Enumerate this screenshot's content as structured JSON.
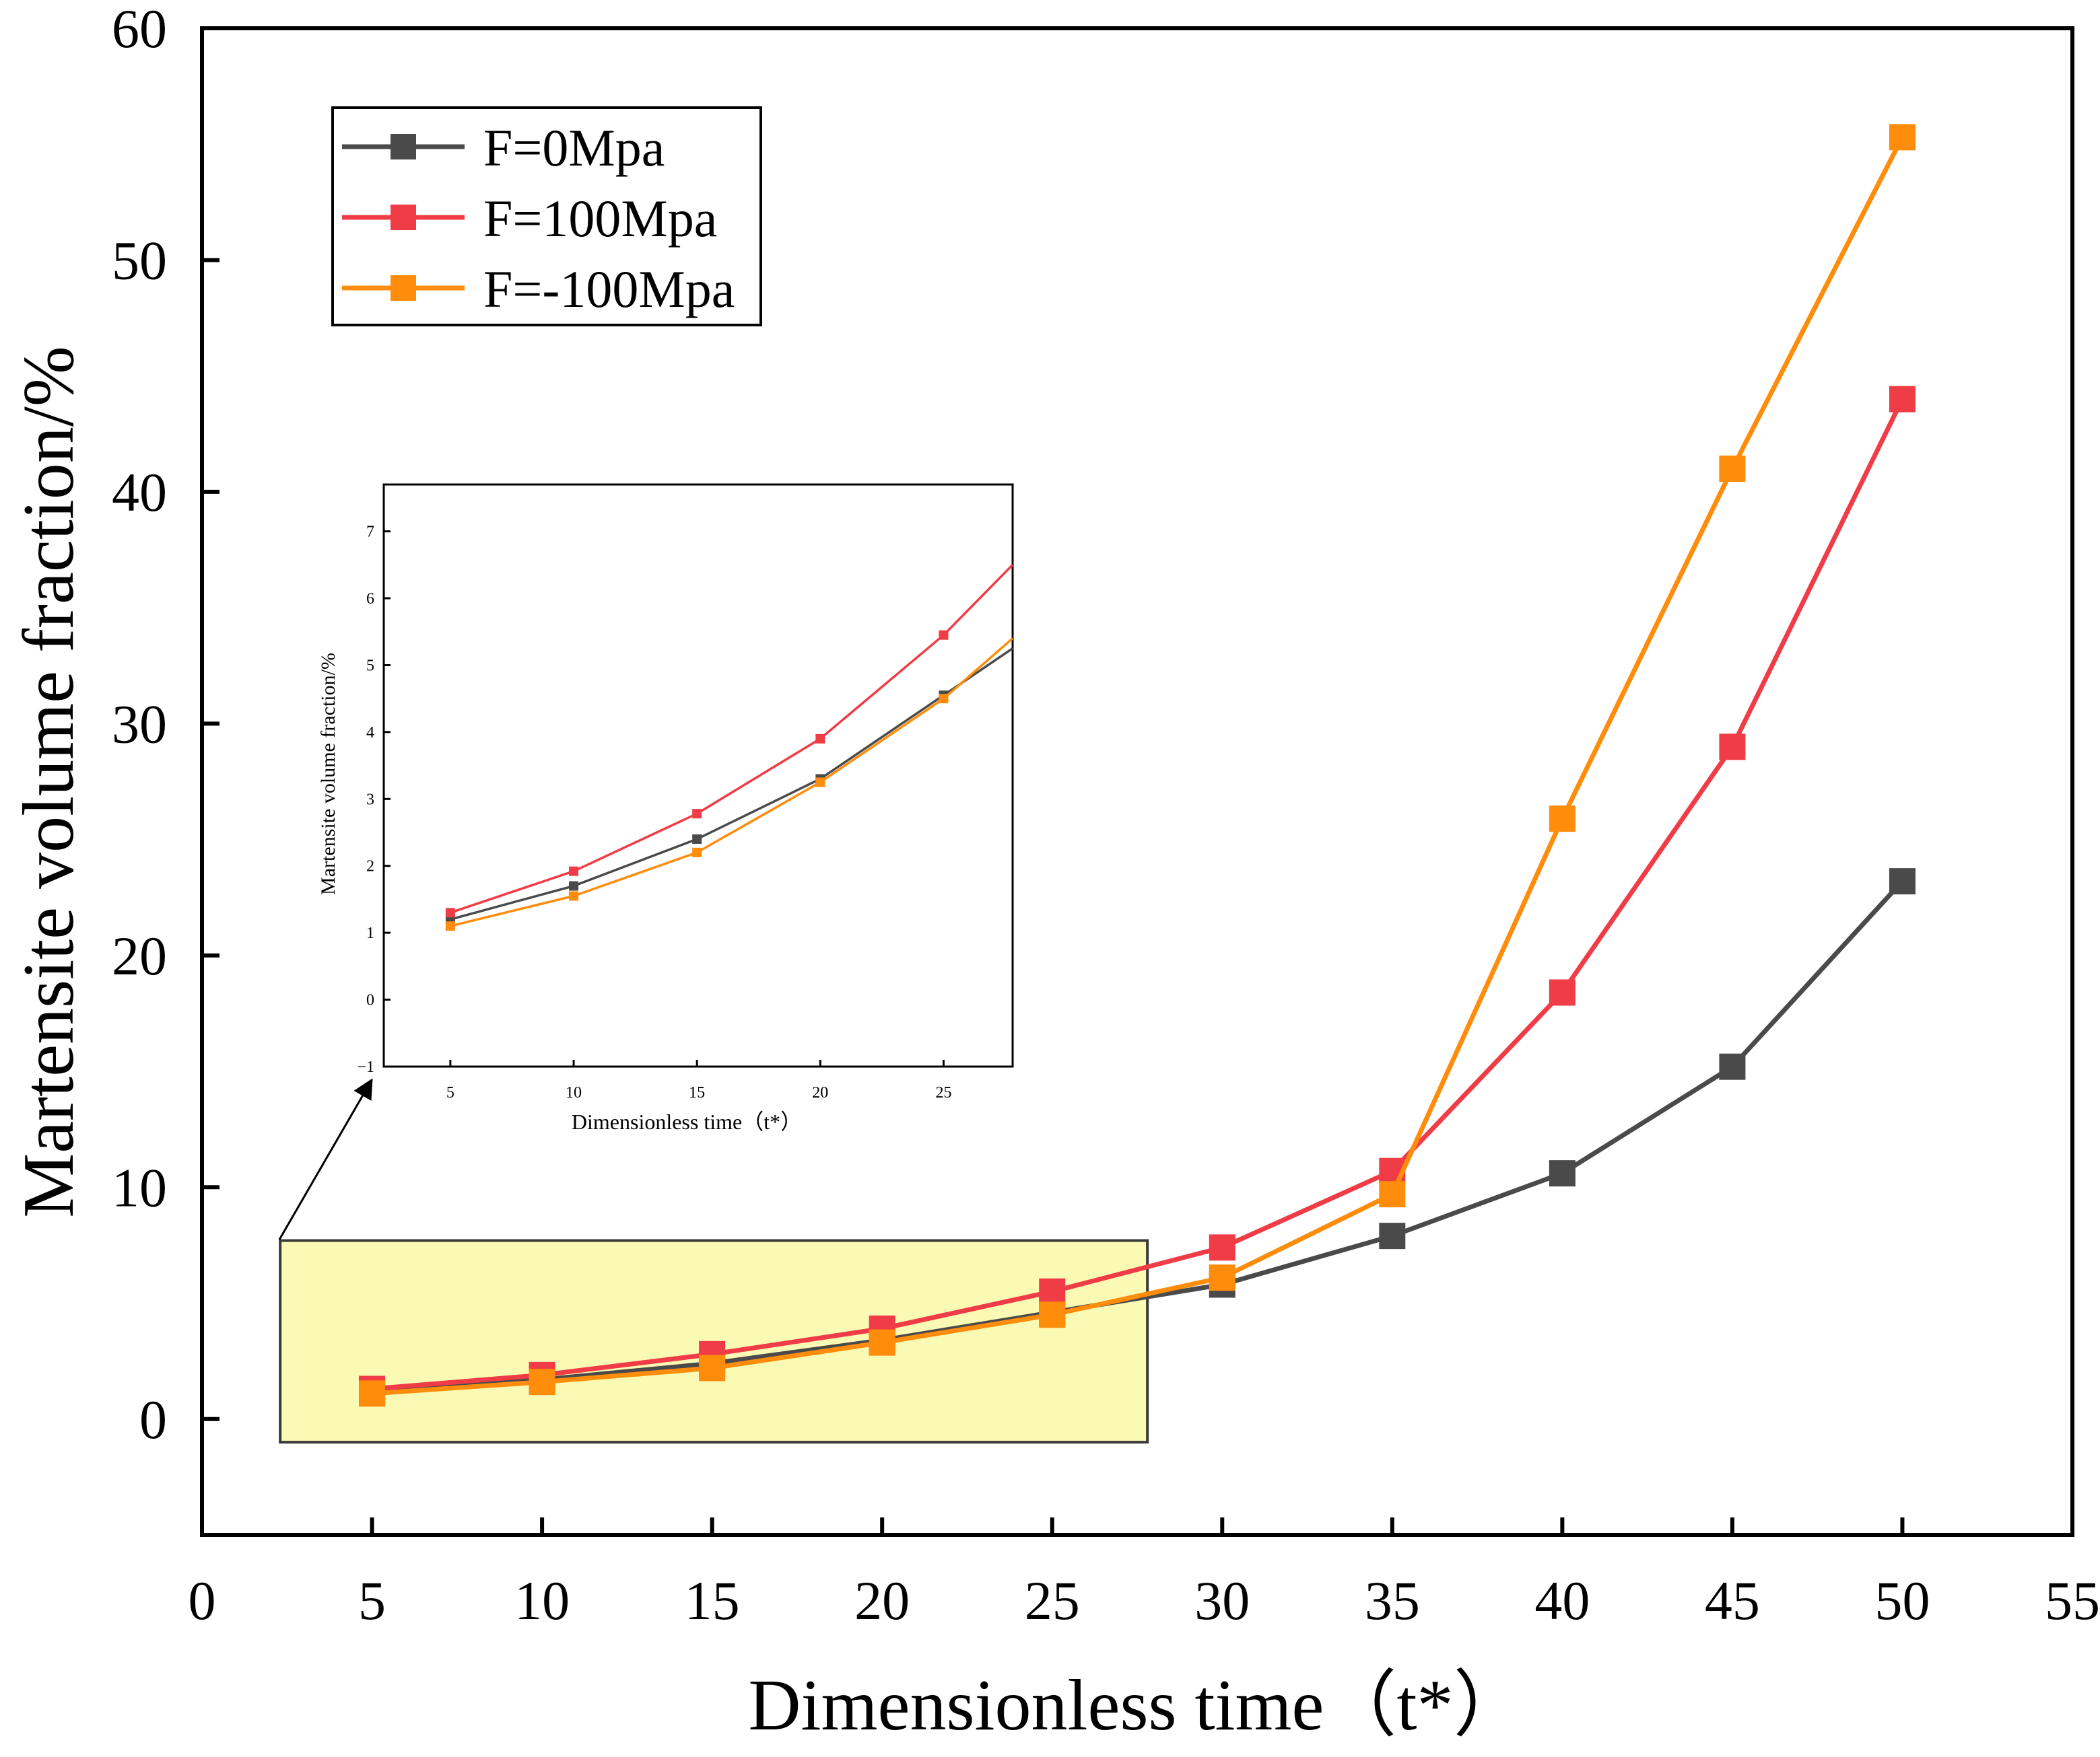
{
  "chart_data": [
    {
      "type": "line",
      "title": "",
      "xlabel": "Dimensionless time（t*）",
      "ylabel": "Martensite volume fraction/%",
      "xlim": [
        0,
        55
      ],
      "ylim": [
        -5,
        60
      ],
      "xticks": [
        0,
        5,
        10,
        15,
        20,
        25,
        30,
        35,
        40,
        45,
        50,
        55
      ],
      "yticks": [
        0,
        10,
        20,
        30,
        40,
        50,
        60
      ],
      "grid": false,
      "legend_position": "top-left",
      "x": [
        5,
        10,
        15,
        20,
        25,
        30,
        35,
        40,
        45,
        50
      ],
      "series": [
        {
          "name": "F=0Mpa",
          "color": "#4a4a4a",
          "values": [
            1.2,
            1.7,
            2.4,
            3.4,
            4.6,
            5.8,
            7.9,
            10.6,
            15.2,
            23.2
          ]
        },
        {
          "name": "F=100Mpa",
          "color": "#f03c46",
          "values": [
            1.3,
            1.9,
            2.8,
            3.9,
            5.5,
            7.4,
            10.7,
            18.4,
            29.0,
            44.0
          ]
        },
        {
          "name": "F=-100Mpa",
          "color": "#ff8c0a",
          "values": [
            1.1,
            1.6,
            2.2,
            3.3,
            4.5,
            6.1,
            9.7,
            25.9,
            41.0,
            55.3
          ]
        }
      ],
      "highlight_region": {
        "x": [
          2.3,
          27.8
        ],
        "y": [
          -1,
          7.7
        ],
        "fill": "#fafab4"
      }
    },
    {
      "type": "line",
      "title": "",
      "xlabel": "Dimensionless time（t*）",
      "ylabel": "Martensite volume fraction/%",
      "xlim": [
        2.3,
        27.8
      ],
      "ylim": [
        -1,
        7.7
      ],
      "xticks": [
        5,
        10,
        15,
        20,
        25
      ],
      "yticks": [
        -1,
        0,
        1,
        2,
        3,
        4,
        5,
        6,
        7
      ],
      "grid": false,
      "x": [
        5,
        10,
        15,
        20,
        25,
        27.8
      ],
      "series": [
        {
          "color": "#4a4a4a",
          "values": [
            1.2,
            1.7,
            2.4,
            3.3,
            4.55,
            5.25
          ]
        },
        {
          "color": "#f03c46",
          "values": [
            1.3,
            1.92,
            2.78,
            3.9,
            5.45,
            6.5
          ]
        },
        {
          "color": "#ff8c0a",
          "values": [
            1.1,
            1.55,
            2.2,
            3.25,
            4.5,
            5.4
          ]
        }
      ]
    }
  ]
}
